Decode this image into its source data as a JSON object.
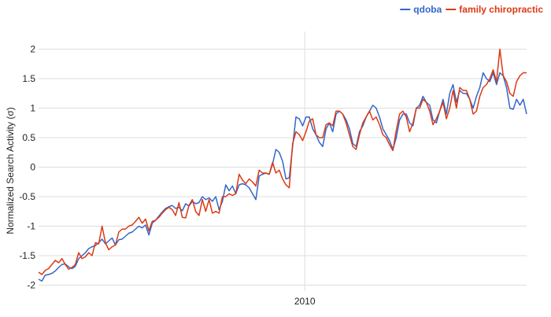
{
  "chart_data": {
    "type": "line",
    "ylabel": "Normalized Search Activity (σ)",
    "ylim": [
      -2.1,
      2.3
    ],
    "y_ticks": [
      -2,
      -1.5,
      -1,
      -0.5,
      0,
      0.5,
      1,
      1.5,
      2
    ],
    "y_tick_labels": [
      "-2",
      "-1.5",
      "-1",
      "-0.5",
      "0",
      "0.5",
      "1",
      "1.5",
      "2"
    ],
    "x_ticks": [
      {
        "value": 2010.0,
        "label": "2010"
      }
    ],
    "xlim": [
      2004.0,
      2015.0
    ],
    "grid": true,
    "legend_position": "top-right",
    "series": [
      {
        "name": "qdoba",
        "color": "#3366cc",
        "values": [
          -1.9,
          -1.93,
          -1.83,
          -1.82,
          -1.8,
          -1.76,
          -1.7,
          -1.65,
          -1.64,
          -1.69,
          -1.72,
          -1.68,
          -1.55,
          -1.5,
          -1.45,
          -1.38,
          -1.35,
          -1.33,
          -1.28,
          -1.22,
          -1.3,
          -1.25,
          -1.2,
          -1.32,
          -1.23,
          -1.22,
          -1.17,
          -1.12,
          -1.1,
          -1.05,
          -1.0,
          -1.03,
          -0.98,
          -1.15,
          -0.95,
          -0.9,
          -0.83,
          -0.76,
          -0.7,
          -0.67,
          -0.65,
          -0.7,
          -0.68,
          -0.74,
          -0.62,
          -0.66,
          -0.58,
          -0.62,
          -0.6,
          -0.5,
          -0.55,
          -0.52,
          -0.58,
          -0.5,
          -0.72,
          -0.58,
          -0.3,
          -0.4,
          -0.32,
          -0.45,
          -0.3,
          -0.28,
          -0.3,
          -0.35,
          -0.45,
          -0.55,
          -0.15,
          -0.12,
          -0.1,
          -0.12,
          0.05,
          0.3,
          0.25,
          0.1,
          -0.2,
          -0.18,
          0.35,
          0.85,
          0.82,
          0.7,
          0.85,
          0.85,
          0.65,
          0.55,
          0.42,
          0.35,
          0.65,
          0.75,
          0.6,
          0.9,
          0.95,
          0.9,
          0.8,
          0.65,
          0.4,
          0.35,
          0.6,
          0.7,
          0.85,
          0.95,
          1.05,
          1.0,
          0.85,
          0.65,
          0.55,
          0.45,
          0.3,
          0.5,
          0.8,
          0.9,
          0.9,
          0.75,
          0.7,
          1.0,
          1.05,
          1.2,
          1.1,
          1.05,
          0.8,
          0.75,
          0.95,
          1.15,
          0.9,
          1.25,
          1.4,
          1.1,
          1.3,
          1.25,
          1.25,
          1.15,
          1.0,
          1.2,
          1.35,
          1.6,
          1.5,
          1.45,
          1.6,
          1.4,
          1.6,
          1.55,
          1.35,
          1.0,
          0.98,
          1.15,
          1.05,
          1.15,
          0.9
        ]
      },
      {
        "name": "family chiropractic",
        "color": "#dc3912",
        "values": [
          -1.78,
          -1.82,
          -1.75,
          -1.72,
          -1.65,
          -1.58,
          -1.62,
          -1.55,
          -1.65,
          -1.73,
          -1.7,
          -1.65,
          -1.45,
          -1.55,
          -1.52,
          -1.45,
          -1.5,
          -1.28,
          -1.3,
          -1.0,
          -1.28,
          -1.4,
          -1.35,
          -1.32,
          -1.1,
          -1.05,
          -1.05,
          -1.0,
          -0.98,
          -0.92,
          -0.85,
          -0.95,
          -0.88,
          -1.08,
          -0.92,
          -0.9,
          -0.85,
          -0.78,
          -0.72,
          -0.68,
          -0.72,
          -0.82,
          -0.6,
          -0.85,
          -0.86,
          -0.65,
          -0.55,
          -0.75,
          -0.82,
          -0.55,
          -0.75,
          -0.55,
          -0.78,
          -0.75,
          -0.78,
          -0.5,
          -0.5,
          -0.45,
          -0.48,
          -0.45,
          -0.12,
          -0.22,
          -0.28,
          -0.2,
          -0.25,
          -0.32,
          -0.05,
          -0.1,
          -0.1,
          -0.12,
          0.08,
          -0.1,
          -0.05,
          -0.2,
          -0.3,
          -0.35,
          0.4,
          0.6,
          0.55,
          0.45,
          0.6,
          0.78,
          0.82,
          0.55,
          0.5,
          0.5,
          0.72,
          0.75,
          0.7,
          0.95,
          0.95,
          0.9,
          0.75,
          0.55,
          0.35,
          0.3,
          0.55,
          0.75,
          0.85,
          0.95,
          0.8,
          0.85,
          0.72,
          0.55,
          0.5,
          0.38,
          0.28,
          0.62,
          0.9,
          0.95,
          0.85,
          0.6,
          0.75,
          1.0,
          1.0,
          1.15,
          1.1,
          0.95,
          0.72,
          0.82,
          0.95,
          1.1,
          0.82,
          1.0,
          1.3,
          1.0,
          1.35,
          1.3,
          1.3,
          1.15,
          0.9,
          0.95,
          1.2,
          1.35,
          1.4,
          1.5,
          1.65,
          1.45,
          2.0,
          1.55,
          1.45,
          1.25,
          1.2,
          1.45,
          1.55,
          1.6,
          1.6
        ]
      }
    ]
  }
}
